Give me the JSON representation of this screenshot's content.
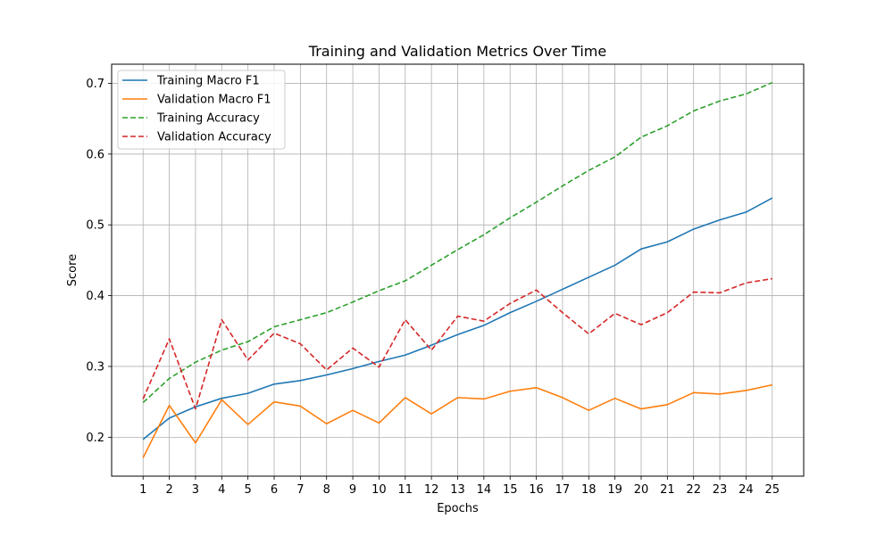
{
  "chart_data": {
    "type": "line",
    "title": "Training and Validation Metrics Over Time",
    "xlabel": "Epochs",
    "ylabel": "Score",
    "x": [
      1,
      2,
      3,
      4,
      5,
      6,
      7,
      8,
      9,
      10,
      11,
      12,
      13,
      14,
      15,
      16,
      17,
      18,
      19,
      20,
      21,
      22,
      23,
      24,
      25
    ],
    "xlim": [
      -0.2,
      26.2
    ],
    "ylim": [
      0.145,
      0.727
    ],
    "yticks": [
      0.2,
      0.3,
      0.4,
      0.5,
      0.6,
      0.7
    ],
    "ytick_labels": [
      "0.2",
      "0.3",
      "0.4",
      "0.5",
      "0.6",
      "0.7"
    ],
    "grid": true,
    "legend_position": "upper-left",
    "series": [
      {
        "name": "Training Macro F1",
        "color": "#1f77b4",
        "dash": "solid",
        "values": [
          0.197,
          0.227,
          0.243,
          0.255,
          0.262,
          0.275,
          0.28,
          0.288,
          0.297,
          0.307,
          0.316,
          0.33,
          0.345,
          0.358,
          0.376,
          0.392,
          0.409,
          0.426,
          0.443,
          0.466,
          0.476,
          0.494,
          0.507,
          0.518,
          0.538
        ]
      },
      {
        "name": "Validation Macro F1",
        "color": "#ff7f0e",
        "dash": "solid",
        "values": [
          0.171,
          0.245,
          0.192,
          0.253,
          0.218,
          0.25,
          0.244,
          0.219,
          0.238,
          0.22,
          0.256,
          0.233,
          0.256,
          0.254,
          0.265,
          0.27,
          0.256,
          0.238,
          0.255,
          0.24,
          0.246,
          0.263,
          0.261,
          0.266,
          0.274
        ]
      },
      {
        "name": "Training Accuracy",
        "color": "#2ca02c",
        "dash": "dashed",
        "values": [
          0.249,
          0.283,
          0.306,
          0.323,
          0.335,
          0.356,
          0.366,
          0.376,
          0.391,
          0.407,
          0.421,
          0.443,
          0.465,
          0.486,
          0.51,
          0.532,
          0.555,
          0.577,
          0.596,
          0.624,
          0.64,
          0.661,
          0.675,
          0.685,
          0.701
        ]
      },
      {
        "name": "Validation Accuracy",
        "color": "#d62728",
        "dash": "dashed",
        "values": [
          0.254,
          0.339,
          0.24,
          0.366,
          0.309,
          0.347,
          0.332,
          0.295,
          0.326,
          0.299,
          0.366,
          0.323,
          0.371,
          0.364,
          0.389,
          0.408,
          0.376,
          0.346,
          0.375,
          0.359,
          0.376,
          0.405,
          0.404,
          0.418,
          0.424
        ]
      }
    ]
  }
}
